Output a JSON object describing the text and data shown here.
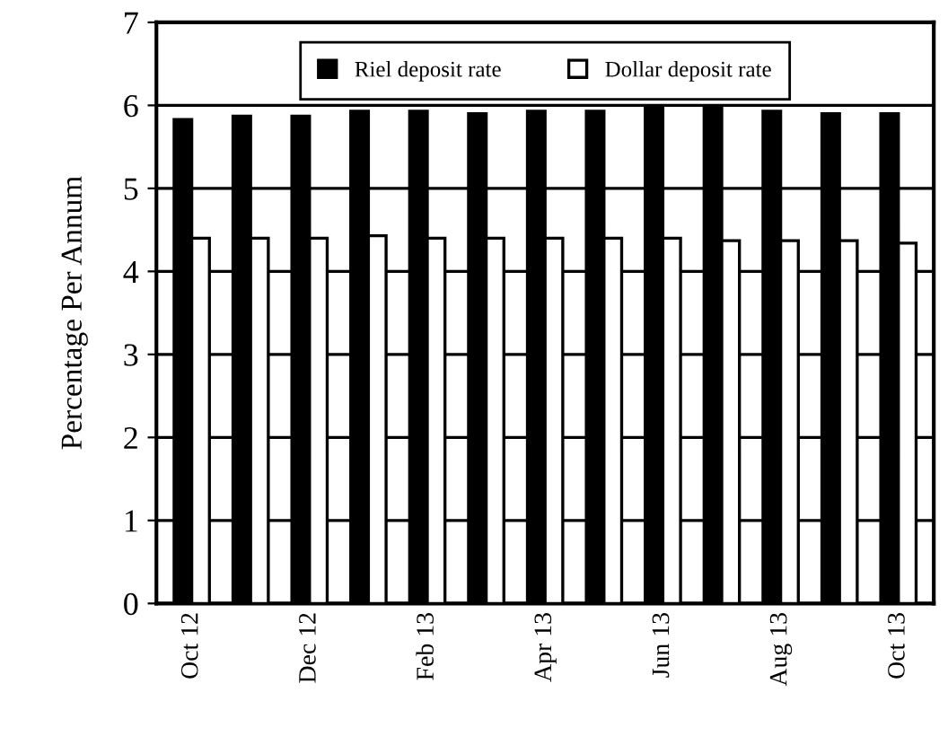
{
  "chart_data": {
    "type": "bar",
    "ylabel": "Percentage Per Annum",
    "categories": [
      "Oct 12",
      null,
      "Dec 12",
      null,
      "Feb 13",
      null,
      "Apr 13",
      null,
      "Jun 13",
      null,
      "Aug 13",
      null,
      "Oct 13"
    ],
    "series": [
      {
        "name": "Riel deposit rate",
        "color": "#000000",
        "values": [
          5.83,
          5.87,
          5.87,
          5.93,
          5.93,
          5.9,
          5.93,
          5.93,
          5.98,
          5.98,
          5.93,
          5.9,
          5.9
        ]
      },
      {
        "name": "Dollar deposit rate",
        "color": "#ffffff",
        "values": [
          4.4,
          4.4,
          4.4,
          4.43,
          4.4,
          4.4,
          4.4,
          4.4,
          4.4,
          4.37,
          4.37,
          4.37,
          4.34
        ]
      }
    ],
    "ylim": [
      0,
      7
    ],
    "yticks": [
      0,
      1,
      2,
      3,
      4,
      5,
      6,
      7
    ],
    "grid": "y",
    "legend": "top"
  }
}
